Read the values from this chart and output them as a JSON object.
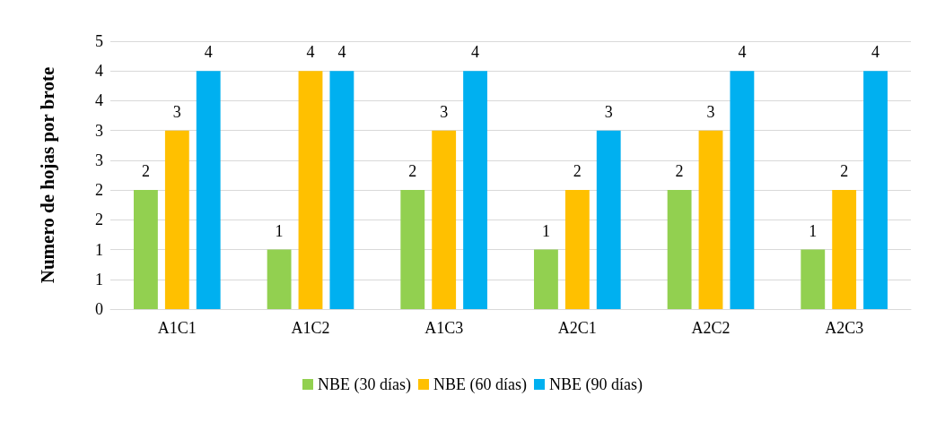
{
  "chart_data": {
    "type": "bar",
    "ylabel": "Numero de hojas por brote",
    "categories": [
      "A1C1",
      "A1C2",
      "A1C3",
      "A2C1",
      "A2C2",
      "A2C3"
    ],
    "series": [
      {
        "name": "NBE (30 días)",
        "color": "#92d050",
        "values": [
          2,
          1,
          2,
          1,
          2,
          1
        ]
      },
      {
        "name": "NBE (60 días)",
        "color": "#ffc000",
        "values": [
          3,
          4,
          3,
          2,
          3,
          2
        ]
      },
      {
        "name": "NBE (90 días)",
        "color": "#00b0f0",
        "values": [
          4,
          4,
          4,
          3,
          4,
          4
        ]
      }
    ],
    "ylim": [
      0,
      4.5
    ],
    "yticks": [
      0,
      {
        "value": 0.5,
        "label": "1"
      },
      {
        "value": 1,
        "label": "1"
      },
      {
        "value": 1.5,
        "label": "2"
      },
      {
        "value": 2,
        "label": "2"
      },
      {
        "value": 2.5,
        "label": "3"
      },
      {
        "value": 3,
        "label": "3"
      },
      {
        "value": 3.5,
        "label": "4"
      },
      {
        "value": 4,
        "label": "4"
      },
      {
        "value": 4.5,
        "label": "5"
      }
    ],
    "grid": "y",
    "legend": "bottom",
    "data_labels": true
  }
}
